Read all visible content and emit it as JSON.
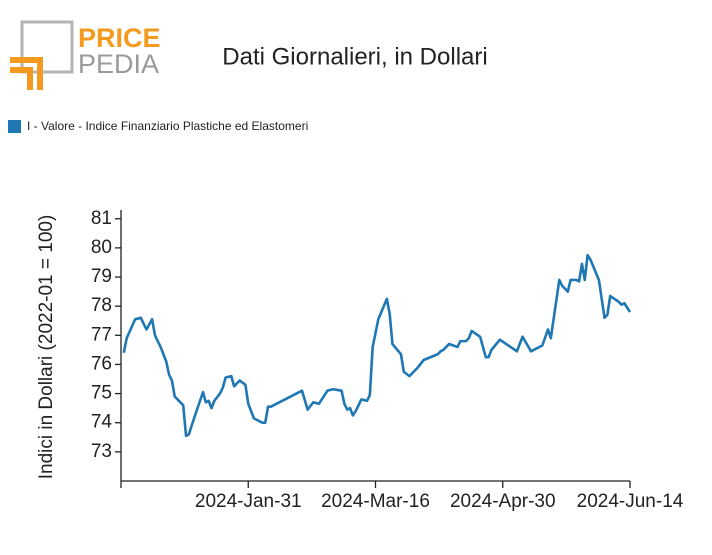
{
  "header": {
    "logo_top": "PRICE",
    "logo_bottom": "PEDIA"
  },
  "chart_data": {
    "type": "line",
    "title": "Dati Giornalieri, in Dollari",
    "y_label": "Indici in Dollari (2022-01 = 100)",
    "legend": "top-left",
    "x": [
      "2023-12-18",
      "2023-12-19",
      "2023-12-22",
      "2023-12-24",
      "2023-12-26",
      "2023-12-28",
      "2023-12-29",
      "2023-12-31",
      "2024-01-02",
      "2024-01-03",
      "2024-01-04",
      "2024-01-05",
      "2024-01-06",
      "2024-01-08",
      "2024-01-09",
      "2024-01-10",
      "2024-01-12",
      "2024-01-15",
      "2024-01-16",
      "2024-01-17",
      "2024-01-18",
      "2024-01-19",
      "2024-01-21",
      "2024-01-22",
      "2024-01-23",
      "2024-01-25",
      "2024-01-26",
      "2024-01-28",
      "2024-01-30",
      "2024-01-31",
      "2024-02-02",
      "2024-02-05",
      "2024-02-06",
      "2024-02-07",
      "2024-02-08",
      "2024-02-19",
      "2024-02-21",
      "2024-02-23",
      "2024-02-25",
      "2024-02-26",
      "2024-02-28",
      "2024-03-01",
      "2024-03-04",
      "2024-03-05",
      "2024-03-06",
      "2024-03-07",
      "2024-03-08",
      "2024-03-09",
      "2024-03-11",
      "2024-03-13",
      "2024-03-14",
      "2024-03-15",
      "2024-03-17",
      "2024-03-20",
      "2024-03-21",
      "2024-03-22",
      "2024-03-25",
      "2024-03-26",
      "2024-03-28",
      "2024-03-31",
      "2024-04-02",
      "2024-04-07",
      "2024-04-08",
      "2024-04-09",
      "2024-04-11",
      "2024-04-14",
      "2024-04-15",
      "2024-04-17",
      "2024-04-18",
      "2024-04-19",
      "2024-04-22",
      "2024-04-24",
      "2024-04-25",
      "2024-04-26",
      "2024-04-29",
      "2024-05-05",
      "2024-05-07",
      "2024-05-10",
      "2024-05-14",
      "2024-05-16",
      "2024-05-17",
      "2024-05-20",
      "2024-05-21",
      "2024-05-23",
      "2024-05-24",
      "2024-05-26",
      "2024-05-27",
      "2024-05-28",
      "2024-05-29",
      "2024-05-30",
      "2024-05-31",
      "2024-06-03",
      "2024-06-04",
      "2024-06-05",
      "2024-06-06",
      "2024-06-07",
      "2024-06-10",
      "2024-06-11",
      "2024-06-12",
      "2024-06-14"
    ],
    "series": [
      {
        "name": "I - Valore - Indice Finanziario Plastiche ed Elastomeri",
        "color": "#1f77b4",
        "values": [
          76.4,
          76.9,
          77.55,
          77.6,
          77.2,
          77.55,
          77.0,
          76.6,
          76.1,
          75.65,
          75.45,
          74.9,
          74.8,
          74.6,
          73.55,
          73.6,
          74.2,
          75.05,
          74.7,
          74.75,
          74.5,
          74.75,
          75.0,
          75.2,
          75.55,
          75.6,
          75.25,
          75.45,
          75.3,
          74.65,
          74.15,
          74.0,
          74.0,
          74.55,
          74.55,
          75.1,
          74.45,
          74.7,
          74.65,
          74.8,
          75.1,
          75.15,
          75.1,
          74.65,
          74.45,
          74.5,
          74.25,
          74.4,
          74.8,
          74.75,
          74.95,
          76.6,
          77.55,
          78.25,
          77.75,
          76.7,
          76.35,
          75.75,
          75.6,
          75.9,
          76.15,
          76.35,
          76.45,
          76.5,
          76.7,
          76.6,
          76.8,
          76.8,
          76.9,
          77.15,
          76.95,
          76.25,
          76.25,
          76.5,
          76.85,
          76.45,
          76.95,
          76.45,
          76.65,
          77.2,
          76.9,
          78.9,
          78.7,
          78.5,
          78.9,
          78.9,
          78.85,
          79.45,
          78.9,
          79.75,
          79.6,
          78.9,
          78.25,
          77.6,
          77.7,
          78.35,
          78.15,
          78.05,
          78.1,
          77.8
        ]
      }
    ],
    "xlim": [
      "2023-12-17",
      "2024-06-14"
    ],
    "xticks": [
      {
        "value": "2024-01-31",
        "label": "2024-Jan-31"
      },
      {
        "value": "2024-03-16",
        "label": "2024-Mar-16"
      },
      {
        "value": "2024-04-30",
        "label": "2024-Apr-30"
      },
      {
        "value": "2024-06-14",
        "label": "2024-Jun-14"
      }
    ],
    "ylim": [
      72,
      81.3
    ],
    "yticks": [
      73,
      74,
      75,
      76,
      77,
      78,
      79,
      80,
      81
    ]
  }
}
